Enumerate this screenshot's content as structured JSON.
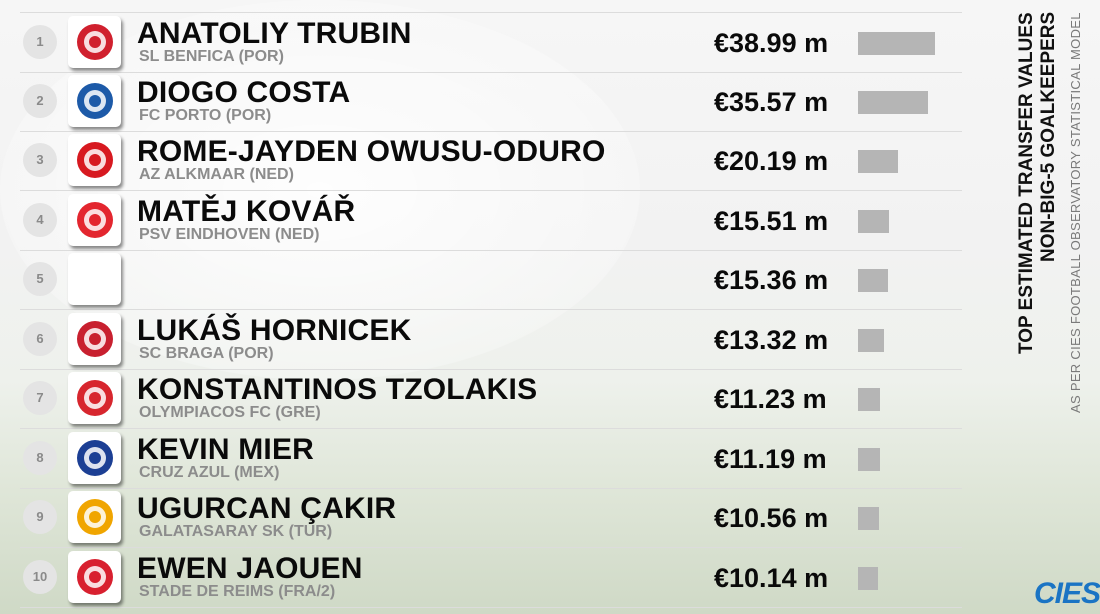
{
  "title_line1": "TOP ESTIMATED TRANSFER VALUES",
  "title_line2": "NON-BIG-5 GOALKEEPERS",
  "subtitle": "AS PER CIES FOOTBALL OBSERVATORY STATISTICAL MODEL",
  "brand": "CIES",
  "colors": {
    "bar": "#b5b5b5",
    "brand": "#1a74c4",
    "name": "#0a0a0a",
    "club": "#8c8c8c"
  },
  "chart_data": {
    "type": "bar",
    "orientation": "horizontal",
    "unit": "€ m",
    "rows": [
      {
        "rank": "1",
        "name": "ANATOLIY TRUBIN",
        "club": "SL BENFICA (POR)",
        "value": 38.99,
        "label": "€38.99 m",
        "logo": "benfica-crest",
        "logo_color": "#d0202e"
      },
      {
        "rank": "2",
        "name": "DIOGO COSTA",
        "club": "FC PORTO (POR)",
        "value": 35.57,
        "label": "€35.57 m",
        "logo": "porto-crest",
        "logo_color": "#1d5aa8"
      },
      {
        "rank": "3",
        "name": "ROME-JAYDEN OWUSU-ODURO",
        "club": "AZ ALKMAAR (NED)",
        "value": 20.19,
        "label": "€20.19 m",
        "logo": "az-crest",
        "logo_color": "#d71920"
      },
      {
        "rank": "4",
        "name": "MATĚJ KOVÁŘ",
        "club": "PSV EINDHOVEN (NED)",
        "value": 15.51,
        "label": "€15.51 m",
        "logo": "psv-crest",
        "logo_color": "#e3262f"
      },
      {
        "rank": "5",
        "name": "",
        "club": "",
        "value": 15.36,
        "label": "€15.36 m",
        "logo": "blank",
        "logo_color": "#ffffff"
      },
      {
        "rank": "6",
        "name": "LUKÁŠ HORNICEK",
        "club": "SC BRAGA (POR)",
        "value": 13.32,
        "label": "€13.32 m",
        "logo": "braga-crest",
        "logo_color": "#c8202f"
      },
      {
        "rank": "7",
        "name": "KONSTANTINOS TZOLAKIS",
        "club": "OLYMPIACOS FC (GRE)",
        "value": 11.23,
        "label": "€11.23 m",
        "logo": "olympiacos-crest",
        "logo_color": "#d7262e"
      },
      {
        "rank": "8",
        "name": "KEVIN MIER",
        "club": "CRUZ AZUL (MEX)",
        "value": 11.19,
        "label": "€11.19 m",
        "logo": "cruz-azul-crest",
        "logo_color": "#1c3f94"
      },
      {
        "rank": "9",
        "name": "UGURCAN ÇAKIR",
        "club": "GALATASARAY SK (TUR)",
        "value": 10.56,
        "label": "€10.56 m",
        "logo": "galatasaray-crest",
        "logo_color": "#f0a500"
      },
      {
        "rank": "10",
        "name": "EWEN JAOUEN",
        "club": "STADE DE REIMS (FRA/2)",
        "value": 10.14,
        "label": "€10.14 m",
        "logo": "reims-crest",
        "logo_color": "#d8202f"
      }
    ]
  }
}
